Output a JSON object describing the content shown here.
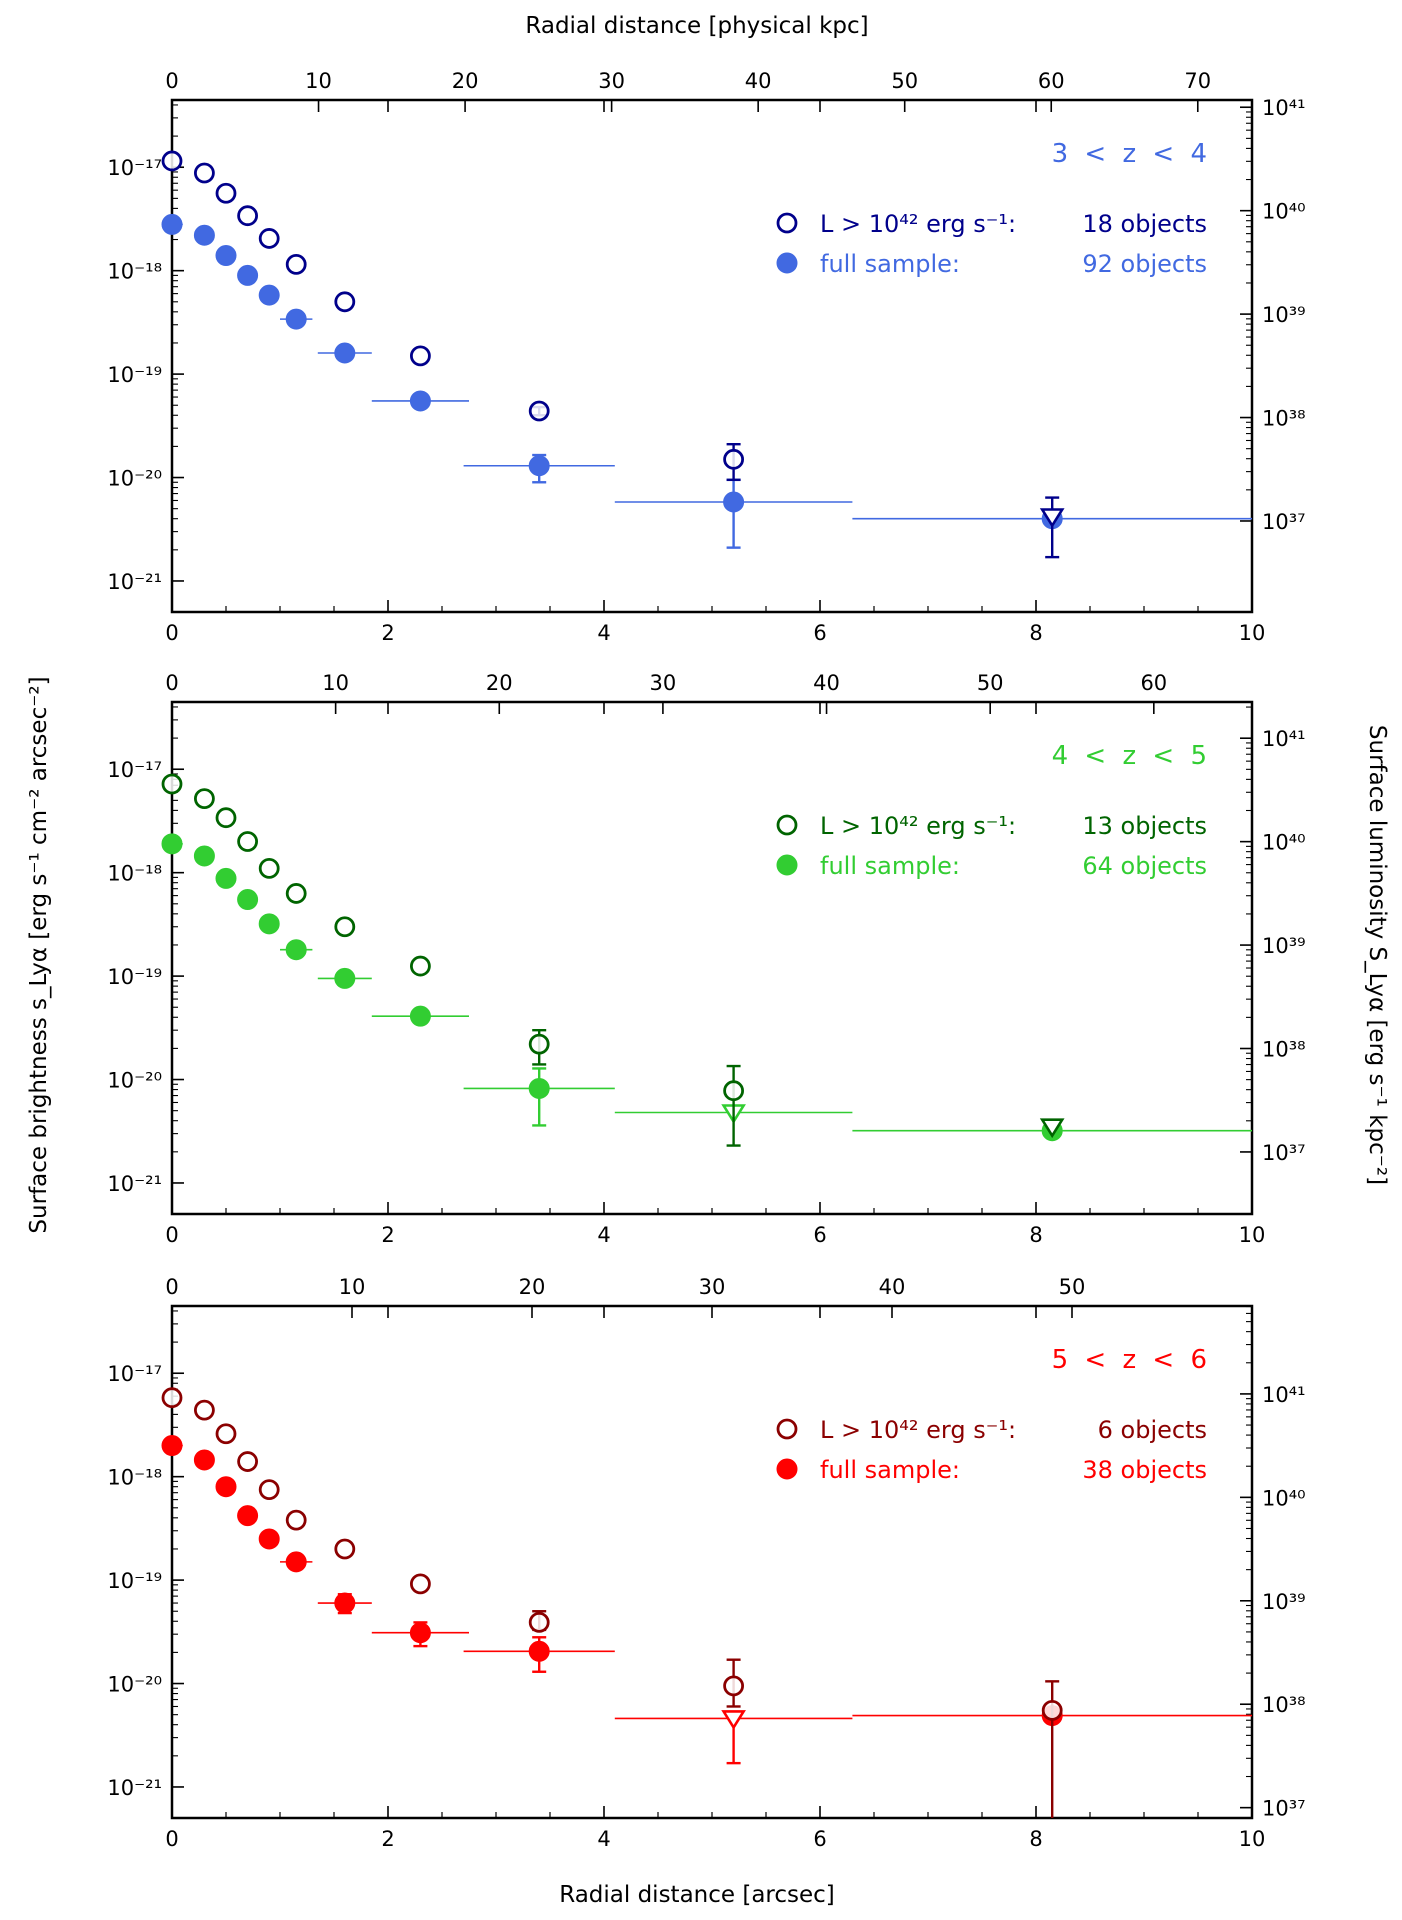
{
  "figure": {
    "top_axis_title": "Radial distance [physical kpc]",
    "bottom_axis_title": "Radial distance [arcsec]",
    "left_axis_title": "Surface brightness s_Lyα [erg s⁻¹ cm⁻² arcsec⁻²]",
    "right_axis_title": "Surface luminosity S_Lyα [erg s⁻¹ kpc⁻²]"
  },
  "chart_data": [
    {
      "type": "scatter",
      "title": "3 < z < 4",
      "color_bright": "#00008b",
      "color_full": "#4169e1",
      "x_range": [
        0,
        10
      ],
      "y_range_log": [
        -21.3,
        -16.35
      ],
      "y_ticks": [
        "10⁻¹⁷",
        "10⁻¹⁸",
        "10⁻¹⁹",
        "10⁻²⁰",
        "10⁻²¹"
      ],
      "y_tick_exp": [
        -17,
        -18,
        -19,
        -20,
        -21
      ],
      "right_ticks": [
        "10⁴¹",
        "10⁴⁰",
        "10³⁹",
        "10³⁸",
        "10³⁷"
      ],
      "right_tick_exp": [
        -16.42,
        -17.42,
        -18.42,
        -19.42,
        -20.42
      ],
      "x_ticks": [
        0,
        2,
        4,
        6,
        8,
        10
      ],
      "top_ticks": [
        0,
        10,
        20,
        30,
        40,
        50,
        60,
        70
      ],
      "kpc_per_arcsec": 7.37,
      "legend_bright_label": "L > 10⁴² erg s⁻¹:",
      "legend_bright_count": "18 objects",
      "legend_full_label": "full sample:",
      "legend_full_count": "92 objects",
      "series_bright": [
        {
          "x": 0.0,
          "y": 1.15e-17
        },
        {
          "x": 0.3,
          "y": 8.8e-18
        },
        {
          "x": 0.5,
          "y": 5.6e-18
        },
        {
          "x": 0.7,
          "y": 3.4e-18
        },
        {
          "x": 0.9,
          "y": 2.05e-18
        },
        {
          "x": 1.15,
          "y": 1.15e-18
        },
        {
          "x": 1.6,
          "y": 5e-19
        },
        {
          "x": 2.3,
          "y": 1.5e-19
        },
        {
          "x": 3.4,
          "y": 4.4e-20,
          "err_lo": 4e-20,
          "err_hi": 4.8e-20
        },
        {
          "x": 5.2,
          "y": 1.5e-20,
          "err_lo": 9.5e-21,
          "err_hi": 2.1e-20
        },
        {
          "x": 8.15,
          "y": 4.2e-21,
          "upper_limit": true,
          "err_lo": 1.7e-21,
          "err_hi": 6.4e-21
        }
      ],
      "series_full": [
        {
          "x": 0.0,
          "y": 2.8e-18,
          "xerr": 0.1
        },
        {
          "x": 0.3,
          "y": 2.2e-18
        },
        {
          "x": 0.5,
          "y": 1.4e-18
        },
        {
          "x": 0.7,
          "y": 9e-19
        },
        {
          "x": 0.9,
          "y": 5.8e-19
        },
        {
          "x": 1.15,
          "y": 3.4e-19,
          "xerr": 0.15
        },
        {
          "x": 1.6,
          "y": 1.6e-19,
          "xerr": 0.25
        },
        {
          "x": 2.3,
          "y": 5.5e-20,
          "xerr": 0.45
        },
        {
          "x": 3.4,
          "y": 1.3e-20,
          "xerr": 0.7,
          "err_lo": 9e-21,
          "err_hi": 1.65e-20
        },
        {
          "x": 5.2,
          "y": 5.8e-21,
          "xerr": 1.1,
          "err_lo": 2.1e-21,
          "err_hi": 9.5e-21
        },
        {
          "x": 8.15,
          "y": 4e-21,
          "xerr": 1.85
        }
      ]
    },
    {
      "type": "scatter",
      "title": "4 < z < 5",
      "color_bright": "#006400",
      "color_full": "#32cd32",
      "x_range": [
        0,
        10
      ],
      "y_range_log": [
        -21.3,
        -16.35
      ],
      "y_ticks": [
        "10⁻¹⁷",
        "10⁻¹⁸",
        "10⁻¹⁹",
        "10⁻²⁰",
        "10⁻²¹"
      ],
      "y_tick_exp": [
        -17,
        -18,
        -19,
        -20,
        -21
      ],
      "right_ticks": [
        "10⁴¹",
        "10⁴⁰",
        "10³⁹",
        "10³⁸",
        "10³⁷"
      ],
      "right_tick_exp": [
        -16.7,
        -17.7,
        -18.7,
        -19.7,
        -20.7
      ],
      "x_ticks": [
        0,
        2,
        4,
        6,
        8,
        10
      ],
      "top_ticks": [
        0,
        10,
        20,
        30,
        40,
        50,
        60
      ],
      "kpc_per_arcsec": 6.6,
      "legend_bright_label": "L > 10⁴² erg s⁻¹:",
      "legend_bright_count": "13 objects",
      "legend_full_label": "full sample:",
      "legend_full_count": "64 objects",
      "series_bright": [
        {
          "x": 0.0,
          "y": 7.2e-18
        },
        {
          "x": 0.3,
          "y": 5.2e-18
        },
        {
          "x": 0.5,
          "y": 3.4e-18
        },
        {
          "x": 0.7,
          "y": 2e-18
        },
        {
          "x": 0.9,
          "y": 1.1e-18
        },
        {
          "x": 1.15,
          "y": 6.3e-19
        },
        {
          "x": 1.6,
          "y": 3e-19
        },
        {
          "x": 2.3,
          "y": 1.25e-19
        },
        {
          "x": 3.4,
          "y": 2.2e-20,
          "err_lo": 1.4e-20,
          "err_hi": 3e-20
        },
        {
          "x": 5.2,
          "y": 7.8e-21,
          "err_lo": 2.3e-21,
          "err_hi": 1.35e-20
        },
        {
          "x": 8.15,
          "y": 3.5e-21,
          "upper_limit": true
        }
      ],
      "series_full": [
        {
          "x": 0.0,
          "y": 1.9e-18,
          "xerr": 0.1
        },
        {
          "x": 0.3,
          "y": 1.45e-18
        },
        {
          "x": 0.5,
          "y": 8.8e-19
        },
        {
          "x": 0.7,
          "y": 5.5e-19
        },
        {
          "x": 0.9,
          "y": 3.2e-19
        },
        {
          "x": 1.15,
          "y": 1.8e-19,
          "xerr": 0.15
        },
        {
          "x": 1.6,
          "y": 9.5e-20,
          "xerr": 0.25
        },
        {
          "x": 2.3,
          "y": 4.1e-20,
          "xerr": 0.45
        },
        {
          "x": 3.4,
          "y": 8.2e-21,
          "xerr": 0.7,
          "err_lo": 3.6e-21,
          "err_hi": 1.28e-20
        },
        {
          "x": 5.2,
          "y": 4.8e-21,
          "xerr": 1.1,
          "upper_limit": true
        },
        {
          "x": 8.15,
          "y": 3.2e-21,
          "xerr": 1.85
        }
      ]
    },
    {
      "type": "scatter",
      "title": "5 < z < 6",
      "color_bright": "#8b0000",
      "color_full": "#ff0000",
      "x_range": [
        0,
        10
      ],
      "y_range_log": [
        -21.3,
        -16.35
      ],
      "y_ticks": [
        "10⁻¹⁷",
        "10⁻¹⁸",
        "10⁻¹⁹",
        "10⁻²⁰",
        "10⁻²¹"
      ],
      "y_tick_exp": [
        -17,
        -18,
        -19,
        -20,
        -21
      ],
      "right_ticks": [
        "10⁴¹",
        "10⁴⁰",
        "10³⁹",
        "10³⁸",
        "10³⁷"
      ],
      "right_tick_exp": [
        -17.2,
        -18.2,
        -19.2,
        -20.2,
        -21.2
      ],
      "x_ticks": [
        0,
        2,
        4,
        6,
        8,
        10
      ],
      "top_ticks": [
        0,
        10,
        20,
        30,
        40,
        50
      ],
      "kpc_per_arcsec": 6.0,
      "legend_bright_label": "L > 10⁴² erg s⁻¹:",
      "legend_bright_count": "6 objects",
      "legend_full_label": "full sample:",
      "legend_full_count": "38 objects",
      "series_bright": [
        {
          "x": 0.0,
          "y": 5.8e-18
        },
        {
          "x": 0.3,
          "y": 4.4e-18
        },
        {
          "x": 0.5,
          "y": 2.6e-18
        },
        {
          "x": 0.7,
          "y": 1.4e-18
        },
        {
          "x": 0.9,
          "y": 7.5e-19
        },
        {
          "x": 1.15,
          "y": 3.8e-19
        },
        {
          "x": 1.6,
          "y": 2e-19
        },
        {
          "x": 2.3,
          "y": 9.2e-20
        },
        {
          "x": 3.4,
          "y": 3.9e-20,
          "err_lo": 3.3e-20,
          "err_hi": 5e-20
        },
        {
          "x": 5.2,
          "y": 9.5e-21,
          "err_lo": 6e-21,
          "err_hi": 1.7e-20
        },
        {
          "x": 8.15,
          "y": 5.5e-21,
          "err_lo": 4e-22,
          "err_hi": 1.05e-20
        }
      ],
      "series_full": [
        {
          "x": 0.0,
          "y": 2e-18,
          "xerr": 0.1
        },
        {
          "x": 0.3,
          "y": 1.45e-18
        },
        {
          "x": 0.5,
          "y": 8e-19
        },
        {
          "x": 0.7,
          "y": 4.2e-19
        },
        {
          "x": 0.9,
          "y": 2.5e-19
        },
        {
          "x": 1.15,
          "y": 1.5e-19,
          "xerr": 0.15
        },
        {
          "x": 1.6,
          "y": 6e-20,
          "xerr": 0.25,
          "err_lo": 4.8e-20,
          "err_hi": 7.3e-20
        },
        {
          "x": 2.3,
          "y": 3.1e-20,
          "xerr": 0.45,
          "err_lo": 2.3e-20,
          "err_hi": 3.9e-20
        },
        {
          "x": 3.4,
          "y": 2.05e-20,
          "xerr": 0.7,
          "err_lo": 1.3e-20,
          "err_hi": 2.8e-20
        },
        {
          "x": 5.2,
          "y": 4.6e-21,
          "xerr": 1.1,
          "upper_limit": true,
          "err_lo": 1.7e-21
        },
        {
          "x": 8.15,
          "y": 4.9e-21,
          "xerr": 1.85
        }
      ]
    }
  ]
}
